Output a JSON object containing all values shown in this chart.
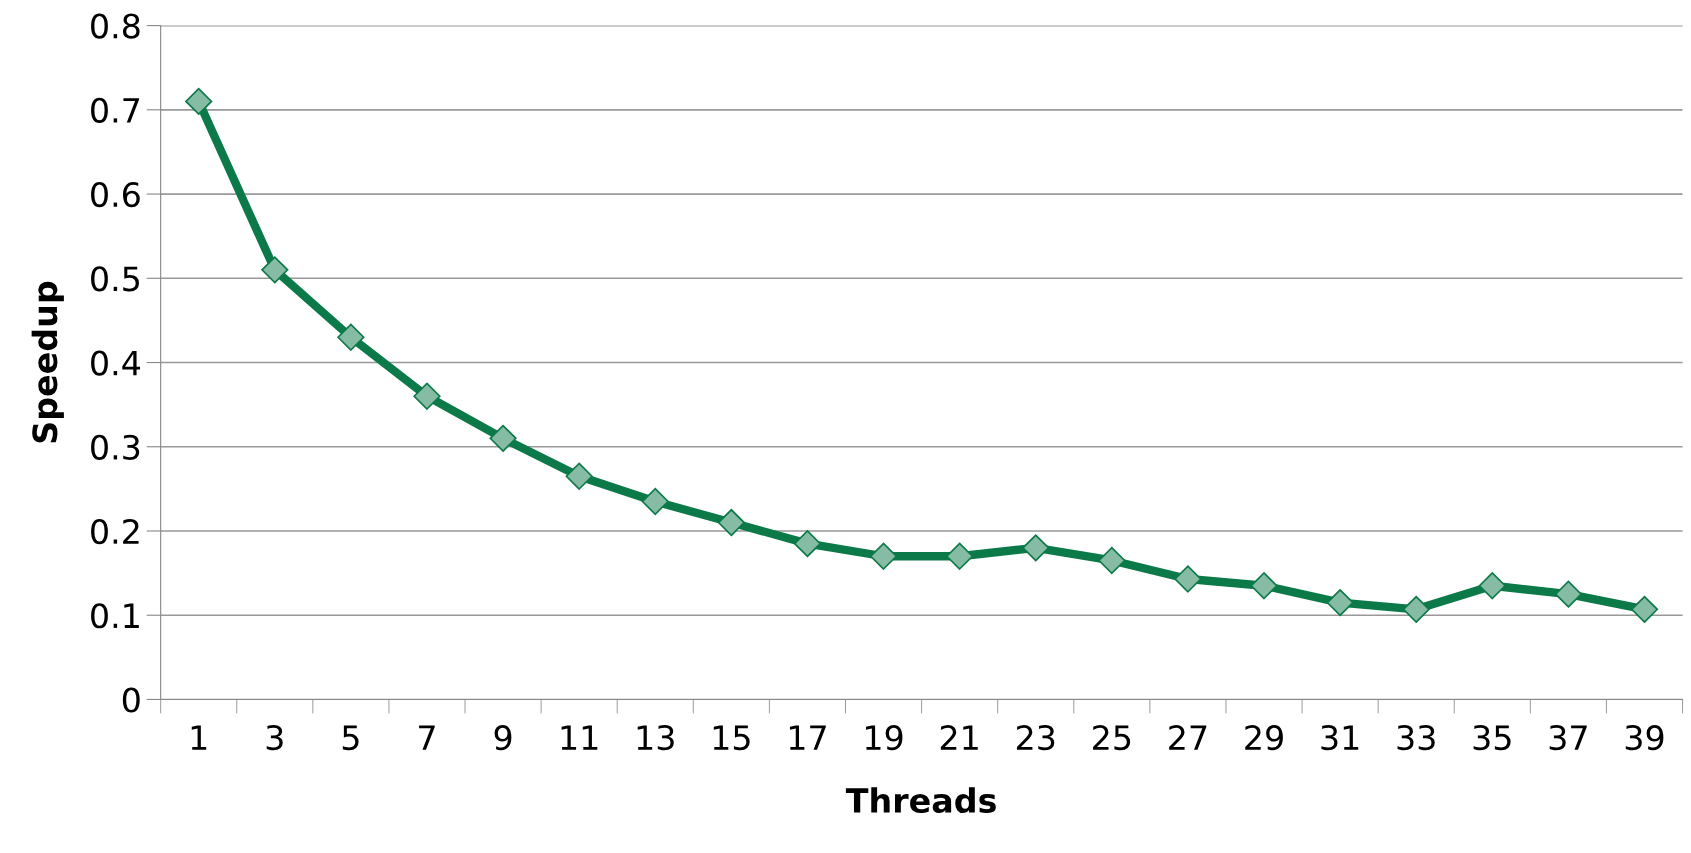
{
  "chart_data": {
    "type": "line",
    "xlabel": "Threads",
    "ylabel": "Speedup",
    "categories": [
      "1",
      "3",
      "5",
      "7",
      "9",
      "11",
      "13",
      "15",
      "17",
      "19",
      "21",
      "23",
      "25",
      "27",
      "29",
      "31",
      "33",
      "35",
      "37",
      "39"
    ],
    "series": [
      {
        "color": "#0b7a48",
        "values": [
          0.71,
          0.51,
          0.43,
          0.36,
          0.31,
          0.265,
          0.235,
          0.21,
          0.185,
          0.17,
          0.17,
          0.18,
          0.165,
          0.143,
          0.135,
          0.115,
          0.107,
          0.135,
          0.125,
          0.107
        ]
      }
    ],
    "ylim": [
      0,
      0.8
    ],
    "yticks": [
      {
        "value": 0,
        "label": "0"
      },
      0.1,
      0.2,
      0.3,
      0.4,
      0.5,
      0.6,
      0.7,
      0.8
    ],
    "grid": "y",
    "marker": "diamond",
    "line_style": "solid"
  }
}
